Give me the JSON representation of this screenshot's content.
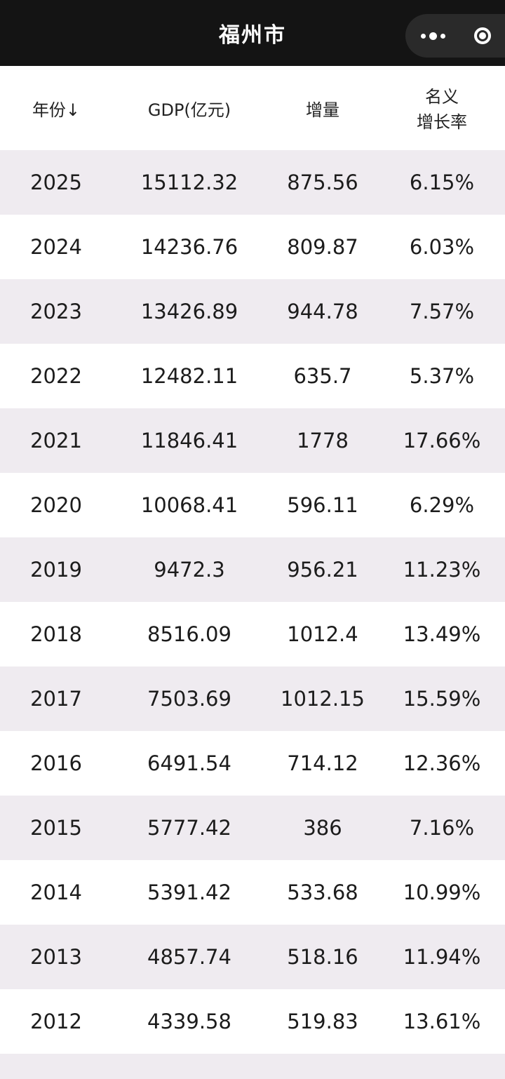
{
  "titlebar": {
    "title": "福州市",
    "more_icon": "more-dots-icon",
    "close_icon": "target-circle-icon"
  },
  "table": {
    "headers": {
      "year": "年份↓",
      "gdp": "GDP(亿元)",
      "increase": "增量",
      "growth_line1": "名义",
      "growth_line2": "增长率"
    },
    "rows": [
      {
        "year": "2025",
        "gdp": "15112.32",
        "increase": "875.56",
        "growth": "6.15%"
      },
      {
        "year": "2024",
        "gdp": "14236.76",
        "increase": "809.87",
        "growth": "6.03%"
      },
      {
        "year": "2023",
        "gdp": "13426.89",
        "increase": "944.78",
        "growth": "7.57%"
      },
      {
        "year": "2022",
        "gdp": "12482.11",
        "increase": "635.7",
        "growth": "5.37%"
      },
      {
        "year": "2021",
        "gdp": "11846.41",
        "increase": "1778",
        "growth": "17.66%"
      },
      {
        "year": "2020",
        "gdp": "10068.41",
        "increase": "596.11",
        "growth": "6.29%"
      },
      {
        "year": "2019",
        "gdp": "9472.3",
        "increase": "956.21",
        "growth": "11.23%"
      },
      {
        "year": "2018",
        "gdp": "8516.09",
        "increase": "1012.4",
        "growth": "13.49%"
      },
      {
        "year": "2017",
        "gdp": "7503.69",
        "increase": "1012.15",
        "growth": "15.59%"
      },
      {
        "year": "2016",
        "gdp": "6491.54",
        "increase": "714.12",
        "growth": "12.36%"
      },
      {
        "year": "2015",
        "gdp": "5777.42",
        "increase": "386",
        "growth": "7.16%"
      },
      {
        "year": "2014",
        "gdp": "5391.42",
        "increase": "533.68",
        "growth": "10.99%"
      },
      {
        "year": "2013",
        "gdp": "4857.74",
        "increase": "518.16",
        "growth": "11.94%"
      },
      {
        "year": "2012",
        "gdp": "4339.58",
        "increase": "519.83",
        "growth": "13.61%"
      }
    ]
  },
  "colors": {
    "titlebar_bg": "#141414",
    "row_alt_bg": "#efebf0",
    "row_bg": "#ffffff"
  }
}
